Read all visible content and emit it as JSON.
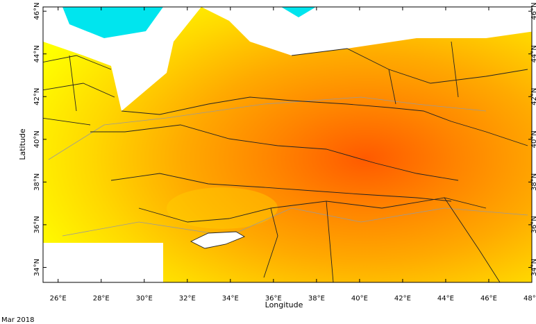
{
  "map": {
    "xlabel": "Longitude",
    "ylabel": "Latitude",
    "caption": "Mar 2018",
    "xlim": [
      25.3,
      48
    ],
    "ylim": [
      33.3,
      46.2
    ],
    "xticks": [
      {
        "value": 26,
        "label": "26°E"
      },
      {
        "value": 28,
        "label": "28°E"
      },
      {
        "value": 30,
        "label": "30°E"
      },
      {
        "value": 32,
        "label": "32°E"
      },
      {
        "value": 34,
        "label": "34°E"
      },
      {
        "value": 36,
        "label": "36°E"
      },
      {
        "value": 38,
        "label": "38°E"
      },
      {
        "value": 40,
        "label": "40°E"
      },
      {
        "value": 42,
        "label": "42°E"
      },
      {
        "value": 44,
        "label": "44°E"
      },
      {
        "value": 46,
        "label": "46°E"
      },
      {
        "value": 48,
        "label": "48°E"
      }
    ],
    "yticks": [
      {
        "value": 34,
        "label": "34°N"
      },
      {
        "value": 36,
        "label": "36°N"
      },
      {
        "value": 38,
        "label": "38°N"
      },
      {
        "value": 40,
        "label": "40°N"
      },
      {
        "value": 42,
        "label": "42°N"
      },
      {
        "value": 44,
        "label": "44°N"
      },
      {
        "value": 46,
        "label": "46°N"
      }
    ]
  }
}
